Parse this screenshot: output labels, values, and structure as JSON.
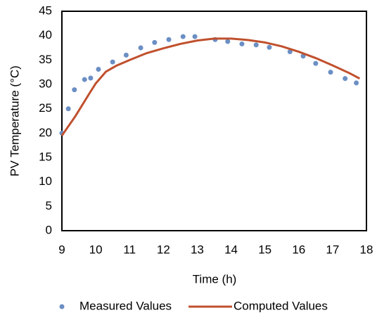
{
  "chart_data": {
    "type": "scatter-line",
    "x_label": "Time (h)",
    "y_label": "PV Temperature (°C)",
    "xlim": [
      9,
      18
    ],
    "xticks": [
      9,
      10,
      11,
      12,
      13,
      14,
      15,
      16,
      17,
      18
    ],
    "ylim": [
      0,
      45
    ],
    "yticks": [
      0,
      5,
      10,
      15,
      20,
      25,
      30,
      35,
      40,
      45
    ],
    "grid": false,
    "legend": "bottom",
    "series": [
      {
        "name": "Measured Values",
        "color": "#6b8fc4",
        "type": "scatter",
        "x": [
          9,
          9.19,
          9.37,
          9.67,
          9.85,
          10.08,
          10.5,
          10.9,
          11.33,
          11.74,
          12.16,
          12.58,
          12.93,
          13.53,
          13.9,
          14.32,
          14.74,
          15.13,
          15.74,
          16.13,
          16.5,
          16.94,
          17.37,
          17.7
        ],
        "values": [
          20,
          25,
          28.9,
          31,
          31.3,
          33.1,
          34.6,
          36,
          37.5,
          38.6,
          39.2,
          39.8,
          39.8,
          39.2,
          38.8,
          38.3,
          38.1,
          37.6,
          36.7,
          35.8,
          34.3,
          32.5,
          31.2,
          30.3
        ]
      },
      {
        "name": "Computed Values",
        "color": "#c0502d",
        "type": "line",
        "x": [
          9,
          9.4,
          9.8,
          10,
          10.3,
          10.6,
          11,
          11.5,
          12,
          12.5,
          13,
          13.5,
          14,
          14.5,
          15,
          15.5,
          16,
          16.5,
          17,
          17.5,
          17.8
        ],
        "values": [
          19.5,
          23.5,
          28,
          30.2,
          32.6,
          33.8,
          35,
          36.4,
          37.4,
          38.3,
          39,
          39.4,
          39.4,
          39.1,
          38.6,
          37.8,
          36.7,
          35.4,
          33.9,
          32.3,
          31.2
        ]
      }
    ]
  }
}
